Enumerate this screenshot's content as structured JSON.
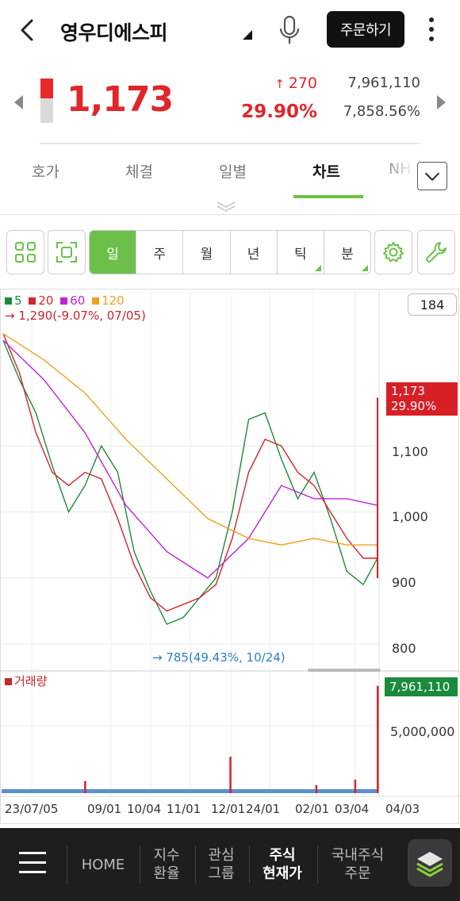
{
  "header": {
    "title": "영우디에스피",
    "order_label": "주문하기"
  },
  "quote": {
    "price": "1,173",
    "change": "270",
    "change_pct": "29.90%",
    "volume": "7,961,110",
    "volume_ratio": "7,858.56%",
    "day_range_fill": 0.45
  },
  "tabs": [
    {
      "label": "호가"
    },
    {
      "label": "체결"
    },
    {
      "label": "일별"
    },
    {
      "label": "차트",
      "active": true
    },
    {
      "label": "NH"
    }
  ],
  "periods": [
    {
      "label": "일",
      "active": true
    },
    {
      "label": "주"
    },
    {
      "label": "월"
    },
    {
      "label": "년"
    },
    {
      "label": "틱",
      "submenu": true
    },
    {
      "label": "분",
      "submenu": true
    }
  ],
  "chart": {
    "count": "184",
    "legend": [
      {
        "label": "5",
        "color": "#1e8a36"
      },
      {
        "label": "20",
        "color": "#d4242a"
      },
      {
        "label": "60",
        "color": "#c023d6"
      },
      {
        "label": "120",
        "color": "#f0a01e"
      }
    ],
    "prev_high": "1,290(-9.07%, 07/05)",
    "current_price": "1,173",
    "current_pct": "29.90%",
    "low_label": "785(49.43%, 10/24)",
    "volume_title": "거래량",
    "volume_tag": "7,961,110",
    "volume_axis_label": "5,000,000"
  },
  "chart_data": {
    "type": "line",
    "y_ticks": [
      "1,100",
      "1,000",
      "900",
      "800"
    ],
    "ylim": [
      790,
      1290
    ],
    "x_ticks": [
      "23/07/05",
      "09/01",
      "10/04",
      "11/01",
      "12/01",
      "24/01",
      "02/01",
      "03/04",
      "04/03"
    ],
    "series": [
      {
        "name": "5",
        "x": [
          0,
          8,
          16,
          24,
          32,
          40,
          48,
          56,
          64,
          72,
          80,
          88,
          96,
          104,
          112,
          120,
          128,
          136,
          144,
          152,
          160,
          168,
          176,
          183
        ],
        "values": [
          1260,
          1200,
          1150,
          1070,
          1000,
          1040,
          1100,
          1060,
          940,
          880,
          830,
          840,
          870,
          900,
          1000,
          1140,
          1150,
          1080,
          1020,
          1060,
          990,
          910,
          890,
          930
        ]
      },
      {
        "name": "20",
        "x": [
          0,
          8,
          16,
          24,
          32,
          40,
          48,
          56,
          64,
          72,
          80,
          88,
          96,
          104,
          112,
          120,
          128,
          136,
          144,
          152,
          160,
          168,
          176,
          183
        ],
        "values": [
          1270,
          1210,
          1120,
          1060,
          1040,
          1060,
          1050,
          990,
          920,
          870,
          850,
          860,
          870,
          890,
          960,
          1060,
          1110,
          1100,
          1060,
          1040,
          1000,
          960,
          930,
          930
        ]
      },
      {
        "name": "60",
        "x": [
          0,
          20,
          40,
          60,
          80,
          100,
          120,
          136,
          152,
          168,
          183
        ],
        "values": [
          1260,
          1200,
          1120,
          1010,
          940,
          900,
          960,
          1040,
          1020,
          1020,
          1010
        ]
      },
      {
        "name": "120",
        "x": [
          0,
          20,
          40,
          60,
          80,
          100,
          120,
          136,
          152,
          168,
          183
        ],
        "values": [
          1270,
          1230,
          1180,
          1110,
          1050,
          990,
          960,
          950,
          960,
          950,
          950
        ]
      }
    ],
    "volume": {
      "x": [
        40,
        111,
        153,
        172,
        183
      ],
      "values": [
        900000,
        2700000,
        600000,
        1000000,
        7961110
      ]
    }
  },
  "nav": [
    {
      "label": "HOME"
    },
    {
      "label": "지수\n환율"
    },
    {
      "label": "관심\n그룹"
    },
    {
      "label": "주식\n현재가",
      "active": true
    },
    {
      "label": "국내주식\n주문"
    }
  ]
}
